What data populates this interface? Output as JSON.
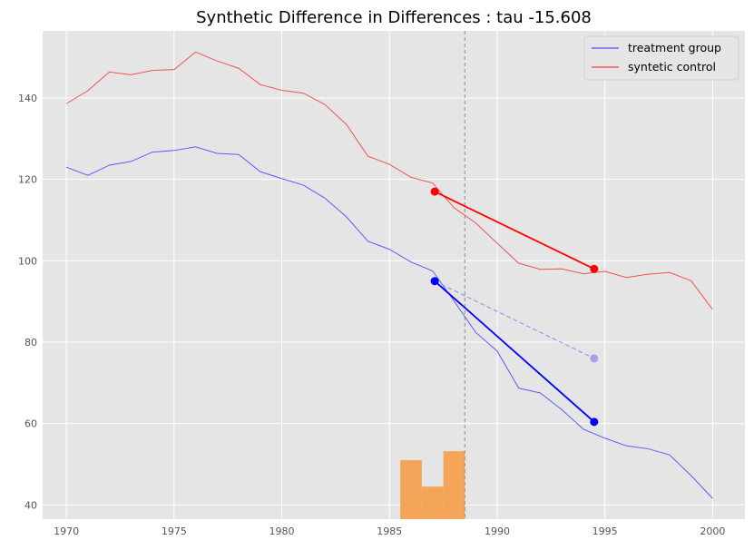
{
  "chart_data": {
    "type": "line",
    "title": "Synthetic Difference in Differences : tau -15.608",
    "xlabel": "",
    "ylabel": "",
    "xlim": [
      1968.9,
      2001.5
    ],
    "ylim": [
      36.5,
      156.5
    ],
    "xticks": [
      1970,
      1975,
      1980,
      1985,
      1990,
      1995,
      2000
    ],
    "yticks": [
      40,
      60,
      80,
      100,
      120,
      140
    ],
    "grid": true,
    "legend_position": "top-right",
    "x": [
      1970,
      1971,
      1972,
      1973,
      1974,
      1975,
      1976,
      1977,
      1978,
      1979,
      1980,
      1981,
      1982,
      1983,
      1984,
      1985,
      1986,
      1987,
      1988,
      1989,
      1990,
      1991,
      1992,
      1993,
      1994,
      1995,
      1996,
      1997,
      1998,
      1999,
      2000
    ],
    "series": [
      {
        "name": "treatment group",
        "color": "#4d4dff",
        "values": [
          123.0,
          121.0,
          123.5,
          124.4,
          126.7,
          127.1,
          128.0,
          126.4,
          126.1,
          121.9,
          120.2,
          118.6,
          115.4,
          110.8,
          104.8,
          102.8,
          99.7,
          97.5,
          90.1,
          82.4,
          77.8,
          68.7,
          67.5,
          63.4,
          58.6,
          56.4,
          54.5,
          53.8,
          52.3,
          47.2,
          41.6
        ]
      },
      {
        "name": "syntetic control",
        "color": "#ee4444",
        "values": [
          138.6,
          141.8,
          146.4,
          145.7,
          146.8,
          147.0,
          151.3,
          149.1,
          147.3,
          143.3,
          141.9,
          141.2,
          138.4,
          133.5,
          125.7,
          123.7,
          120.5,
          119.1,
          113.0,
          109.3,
          104.3,
          99.4,
          97.9,
          98.0,
          96.8,
          97.4,
          95.9,
          96.7,
          97.1,
          95.1,
          88.0
        ]
      }
    ],
    "intervention_year": 1988.5,
    "treated_segment": {
      "color": "#0000ff",
      "x": [
        1987.1,
        1994.5
      ],
      "y": [
        95.0,
        60.4
      ]
    },
    "control_segment": {
      "color": "#ff0000",
      "x": [
        1987.1,
        1994.5
      ],
      "y": [
        117.0,
        98.0
      ]
    },
    "counterfactual_segment": {
      "color": "#8c8cf0",
      "x": [
        1987.1,
        1994.5
      ],
      "y": [
        95.0,
        76.0
      ]
    },
    "time_weights": {
      "color": "#f4a55a",
      "bins": [
        {
          "x0": 1985.5,
          "x1": 1986.5,
          "y": 51.0
        },
        {
          "x0": 1986.5,
          "x1": 1987.5,
          "y": 44.5
        },
        {
          "x0": 1987.5,
          "x1": 1988.5,
          "y": 53.2
        }
      ]
    }
  }
}
